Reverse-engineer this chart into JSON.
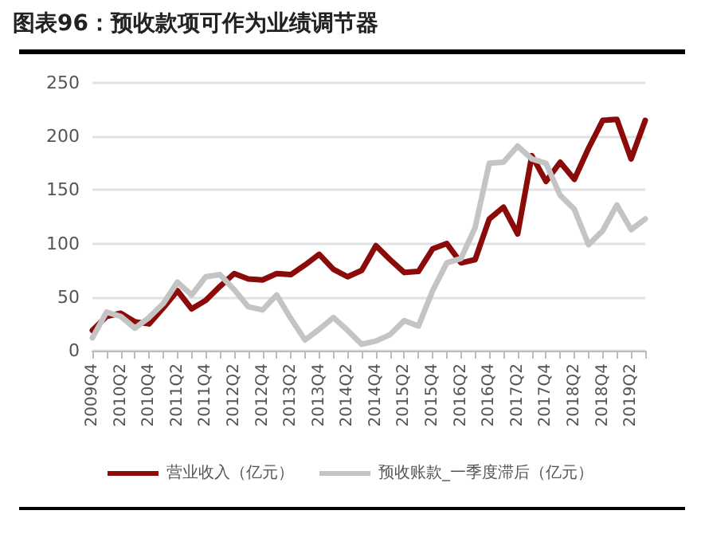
{
  "chart_data": {
    "type": "line",
    "title": "图表96：预收款项可作为业绩调节器",
    "categories": [
      "2009Q4",
      null,
      "2010Q2",
      null,
      "2010Q4",
      null,
      "2011Q2",
      null,
      "2011Q4",
      null,
      "2012Q2",
      null,
      "2012Q4",
      null,
      "2013Q2",
      null,
      "2013Q4",
      null,
      "2014Q2",
      null,
      "2014Q4",
      null,
      "2015Q2",
      null,
      "2015Q4",
      null,
      "2016Q2",
      null,
      "2016Q4",
      null,
      "2017Q2",
      null,
      "2017Q4",
      null,
      "2018Q2",
      null,
      "2018Q4",
      null,
      "2019Q2",
      null
    ],
    "series": [
      {
        "name": "营业收入（亿元）",
        "color": "#8b0a0a",
        "values": [
          19,
          32,
          35,
          27,
          25,
          40,
          56,
          39,
          47,
          60,
          72,
          67,
          66,
          72,
          71,
          80,
          90,
          76,
          69,
          75,
          98,
          85,
          73,
          74,
          95,
          100,
          82,
          85,
          123,
          134,
          109,
          182,
          158,
          176,
          160,
          189,
          215,
          216,
          179,
          215
        ]
      },
      {
        "name": "预收账款_一季度滞后（亿元）",
        "color": "#c4c4c4",
        "values": [
          12,
          36,
          32,
          21,
          31,
          44,
          64,
          52,
          69,
          71,
          57,
          41,
          38,
          52,
          30,
          10,
          20,
          31,
          19,
          6,
          9,
          15,
          28,
          23,
          56,
          82,
          86,
          115,
          175,
          176,
          191,
          179,
          175,
          145,
          132,
          99,
          112,
          136,
          113,
          123
        ]
      }
    ],
    "ylim": [
      0,
      250
    ],
    "yticks": [
      0,
      50,
      100,
      150,
      200,
      250
    ],
    "grid": "y",
    "legend": "bottom",
    "marker": "none",
    "line_style": "solid"
  }
}
